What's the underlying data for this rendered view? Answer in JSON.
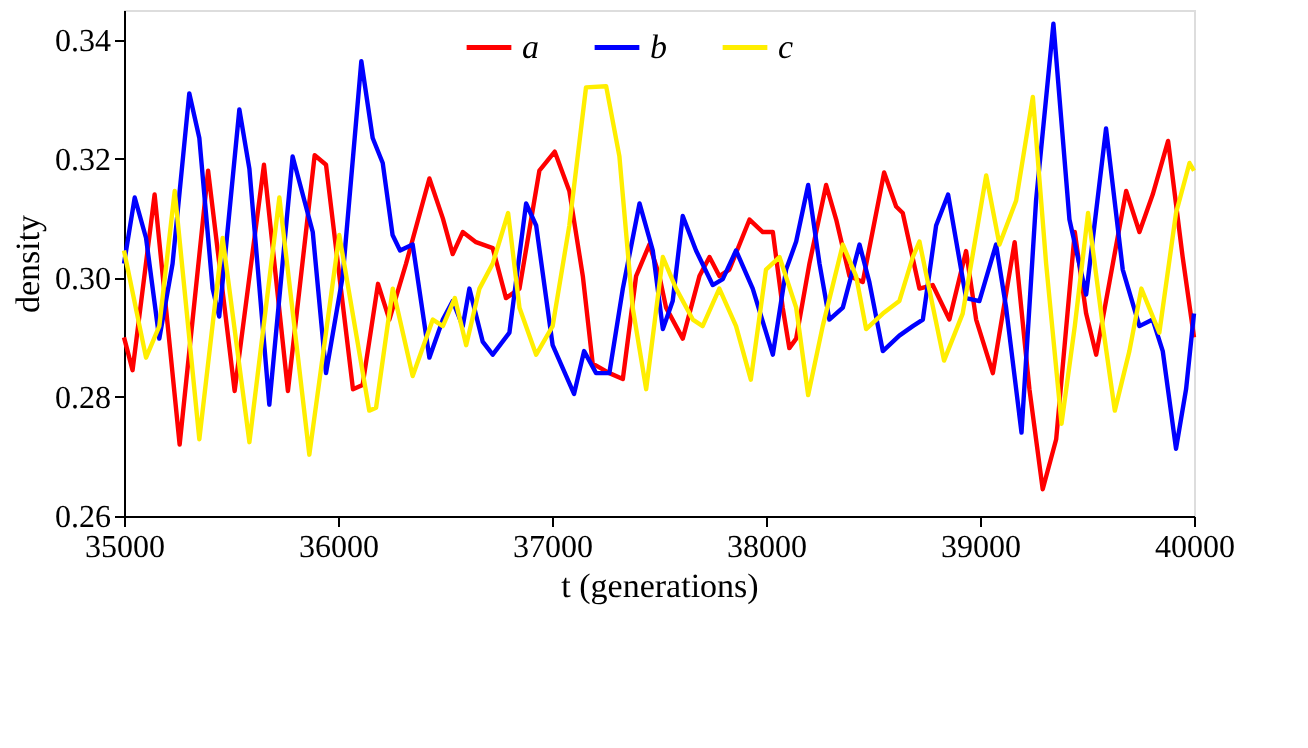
{
  "chart_data": {
    "type": "line",
    "xlabel": "t (generations)",
    "ylabel": "density",
    "xlim": [
      35000,
      40000
    ],
    "xticks": [
      35000,
      36000,
      37000,
      38000,
      39000,
      40000
    ],
    "ylim": [
      0.26,
      0.345
    ],
    "yticks": [
      0.26,
      0.28,
      {
        "value": 0.3,
        "label": "0.30"
      },
      0.32,
      0.34
    ],
    "grid": false,
    "legend": "top",
    "marker": "none",
    "line_style": "solid",
    "series": [
      {
        "name": "a",
        "color": "#ff0000",
        "x": [
          35000,
          35040,
          35143,
          35260,
          35393,
          35517,
          35654,
          35766,
          35891,
          35944,
          36070,
          36115,
          36187,
          36240,
          36318,
          36427,
          36490,
          36536,
          36583,
          36645,
          36723,
          36785,
          36848,
          36941,
          37013,
          37081,
          37144,
          37190,
          37268,
          37331,
          37393,
          37455,
          37502,
          37533,
          37611,
          37689,
          37736,
          37782,
          37829,
          37923,
          37985,
          38032,
          38078,
          38109,
          38141,
          38203,
          38281,
          38328,
          38390,
          38452,
          38552,
          38608,
          38639,
          38717,
          38779,
          38857,
          38935,
          38982,
          39060,
          39162,
          39231,
          39293,
          39356,
          39443,
          39496,
          39543,
          39605,
          39683,
          39745,
          39807,
          39879,
          39947,
          40000
        ],
        "values": [
          0.29,
          0.2845,
          0.314,
          0.272,
          0.318,
          0.281,
          0.319,
          0.281,
          0.3206,
          0.319,
          0.2813,
          0.282,
          0.299,
          0.293,
          0.3024,
          0.3167,
          0.31,
          0.304,
          0.3077,
          0.306,
          0.305,
          0.2966,
          0.2982,
          0.318,
          0.3212,
          0.3146,
          0.3003,
          0.2856,
          0.284,
          0.283,
          0.3003,
          0.3056,
          0.3003,
          0.295,
          0.2898,
          0.3003,
          0.3035,
          0.3003,
          0.3014,
          0.3098,
          0.3077,
          0.3077,
          0.295,
          0.2882,
          0.2898,
          0.3024,
          0.3156,
          0.3098,
          0.3003,
          0.2993,
          0.3177,
          0.312,
          0.3109,
          0.2982,
          0.2988,
          0.293,
          0.3045,
          0.293,
          0.284,
          0.306,
          0.2813,
          0.2645,
          0.2729,
          0.3077,
          0.294,
          0.2871,
          0.2993,
          0.3146,
          0.3077,
          0.314,
          0.323,
          0.3035,
          0.29
        ]
      },
      {
        "name": "b",
        "color": "#0000ff",
        "x": [
          35000,
          35050,
          35103,
          35165,
          35227,
          35305,
          35352,
          35414,
          35445,
          35539,
          35586,
          35679,
          35788,
          35882,
          35944,
          36022,
          36109,
          36162,
          36209,
          36255,
          36290,
          36349,
          36427,
          36490,
          36536,
          36583,
          36614,
          36676,
          36723,
          36801,
          36879,
          36926,
          37003,
          37103,
          37150,
          37206,
          37268,
          37331,
          37409,
          37471,
          37518,
          37564,
          37611,
          37673,
          37751,
          37798,
          37860,
          37938,
          38032,
          38094,
          38141,
          38197,
          38250,
          38296,
          38359,
          38437,
          38483,
          38546,
          38623,
          38686,
          38733,
          38795,
          38851,
          38935,
          38997,
          39075,
          39122,
          39194,
          39262,
          39343,
          39418,
          39496,
          39589,
          39667,
          39745,
          39807,
          39854,
          39916,
          39963,
          40000
        ],
        "values": [
          0.3024,
          0.3135,
          0.3067,
          0.2898,
          0.3024,
          0.331,
          0.3235,
          0.2982,
          0.2935,
          0.3283,
          0.3183,
          0.2787,
          0.3204,
          0.3077,
          0.284,
          0.3003,
          0.3364,
          0.3235,
          0.3193,
          0.3072,
          0.3046,
          0.3056,
          0.2866,
          0.293,
          0.2961,
          0.2919,
          0.2982,
          0.2893,
          0.2871,
          0.2908,
          0.3125,
          0.3088,
          0.2887,
          0.2805,
          0.2877,
          0.284,
          0.284,
          0.2982,
          0.3125,
          0.3046,
          0.2914,
          0.2961,
          0.3104,
          0.3046,
          0.2988,
          0.2998,
          0.3046,
          0.2982,
          0.2871,
          0.3014,
          0.3061,
          0.3156,
          0.3024,
          0.293,
          0.295,
          0.3056,
          0.2993,
          0.2877,
          0.2903,
          0.2919,
          0.293,
          0.3088,
          0.314,
          0.2966,
          0.2961,
          0.3056,
          0.295,
          0.274,
          0.313,
          0.3427,
          0.3098,
          0.2972,
          0.3251,
          0.3014,
          0.2919,
          0.293,
          0.2877,
          0.2713,
          0.2813,
          0.294
        ]
      },
      {
        "name": "c",
        "color": "#ffee00",
        "x": [
          35000,
          35103,
          35165,
          35237,
          35352,
          35461,
          35586,
          35726,
          35866,
          36006,
          36146,
          36178,
          36256,
          36349,
          36443,
          36490,
          36546,
          36599,
          36661,
          36723,
          36795,
          36848,
          36926,
          37003,
          37081,
          37159,
          37253,
          37315,
          37377,
          37440,
          37518,
          37580,
          37658,
          37704,
          37782,
          37860,
          37929,
          38000,
          38063,
          38141,
          38197,
          38265,
          38359,
          38421,
          38468,
          38546,
          38623,
          38686,
          38717,
          38832,
          38919,
          39029,
          39091,
          39169,
          39247,
          39309,
          39381,
          39443,
          39505,
          39574,
          39630,
          39698,
          39754,
          39838,
          39916,
          39979,
          40000
        ],
        "values": [
          0.3046,
          0.2866,
          0.2919,
          0.3146,
          0.2729,
          0.3067,
          0.2724,
          0.3135,
          0.2703,
          0.3072,
          0.2777,
          0.2782,
          0.2982,
          0.2835,
          0.293,
          0.2919,
          0.2966,
          0.2887,
          0.2982,
          0.3024,
          0.3109,
          0.295,
          0.2871,
          0.2919,
          0.3088,
          0.332,
          0.3322,
          0.3204,
          0.295,
          0.2813,
          0.3035,
          0.2982,
          0.293,
          0.2919,
          0.2982,
          0.2919,
          0.2829,
          0.3014,
          0.3035,
          0.295,
          0.2803,
          0.2919,
          0.3056,
          0.3003,
          0.2914,
          0.294,
          0.2961,
          0.3035,
          0.3061,
          0.2861,
          0.294,
          0.3172,
          0.3056,
          0.313,
          0.3304,
          0.3024,
          0.2755,
          0.2919,
          0.3109,
          0.2919,
          0.2777,
          0.2877,
          0.2982,
          0.2908,
          0.3109,
          0.3193,
          0.318
        ]
      }
    ]
  }
}
